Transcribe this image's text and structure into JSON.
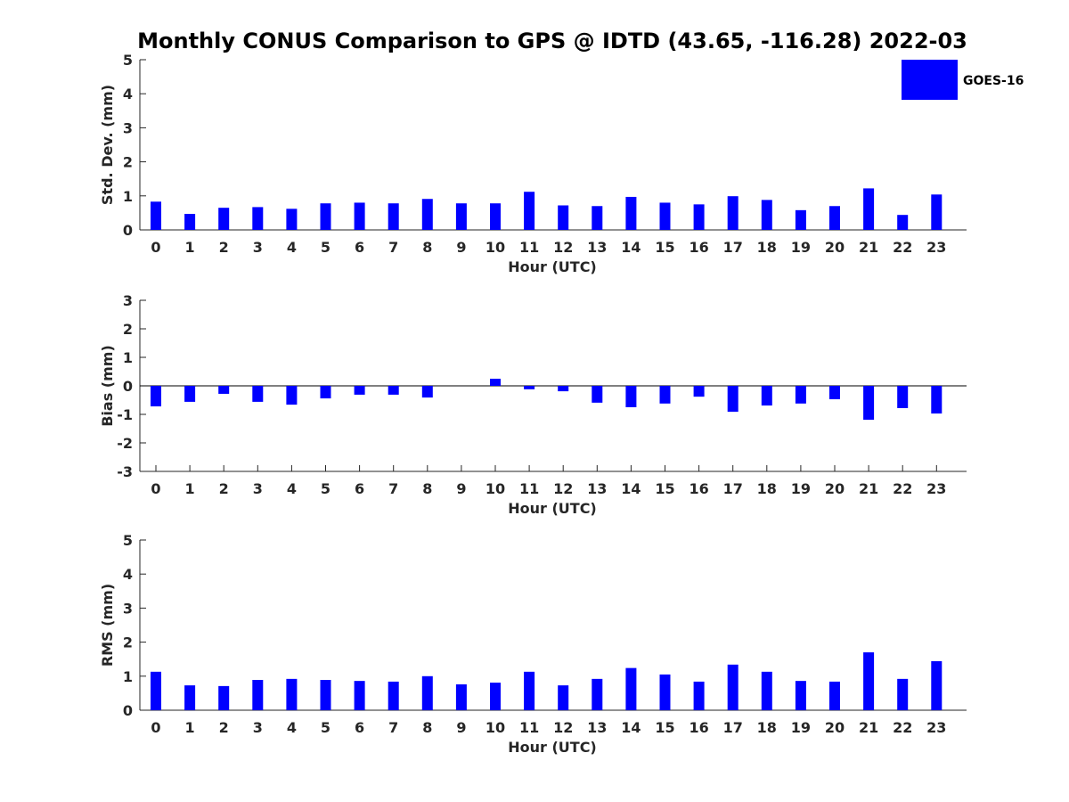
{
  "chart_data": {
    "title": "Monthly CONUS Comparison to GPS @ IDTD (43.65, -116.28) 2022-03",
    "legend": {
      "placement": "top-right",
      "entries": [
        {
          "name": "GOES-16",
          "color": "#0000ff"
        }
      ]
    },
    "bar_color": "#0000ff",
    "categories": [
      "0",
      "1",
      "2",
      "3",
      "4",
      "5",
      "6",
      "7",
      "8",
      "9",
      "10",
      "11",
      "12",
      "13",
      "14",
      "15",
      "16",
      "17",
      "18",
      "19",
      "20",
      "21",
      "22",
      "23"
    ],
    "panels": [
      {
        "type": "bar",
        "xlabel": "Hour (UTC)",
        "ylabel": "Std. Dev. (mm)",
        "ylim": [
          0,
          5
        ],
        "yticks": [
          0,
          1,
          2,
          3,
          4,
          5
        ],
        "grid": false,
        "series": [
          {
            "name": "GOES-16",
            "values": [
              0.83,
              0.47,
              0.65,
              0.67,
              0.62,
              0.78,
              0.8,
              0.78,
              0.91,
              0.78,
              0.78,
              1.12,
              0.72,
              0.7,
              0.97,
              0.8,
              0.75,
              0.99,
              0.88,
              0.58,
              0.7,
              1.22,
              0.44,
              1.04
            ]
          }
        ]
      },
      {
        "type": "bar",
        "xlabel": "Hour (UTC)",
        "ylabel": "Bias (mm)",
        "ylim": [
          -3,
          3
        ],
        "yticks": [
          -3,
          -2,
          -1,
          0,
          1,
          2,
          3
        ],
        "grid": false,
        "series": [
          {
            "name": "GOES-16",
            "values": [
              -0.72,
              -0.56,
              -0.28,
              -0.56,
              -0.66,
              -0.44,
              -0.31,
              -0.31,
              -0.41,
              0.0,
              0.25,
              -0.12,
              -0.19,
              -0.59,
              -0.75,
              -0.62,
              -0.38,
              -0.91,
              -0.69,
              -0.62,
              -0.47,
              -1.19,
              -0.78,
              -0.97
            ]
          }
        ]
      },
      {
        "type": "bar",
        "xlabel": "Hour (UTC)",
        "ylabel": "RMS (mm)",
        "ylim": [
          0,
          5
        ],
        "yticks": [
          0,
          1,
          2,
          3,
          4,
          5
        ],
        "grid": false,
        "series": [
          {
            "name": "GOES-16",
            "values": [
              1.13,
              0.73,
              0.71,
              0.89,
              0.92,
              0.89,
              0.86,
              0.84,
              1.0,
              0.76,
              0.81,
              1.13,
              0.73,
              0.92,
              1.24,
              1.05,
              0.84,
              1.34,
              1.13,
              0.86,
              0.84,
              1.7,
              0.92,
              1.44
            ]
          }
        ]
      }
    ]
  }
}
